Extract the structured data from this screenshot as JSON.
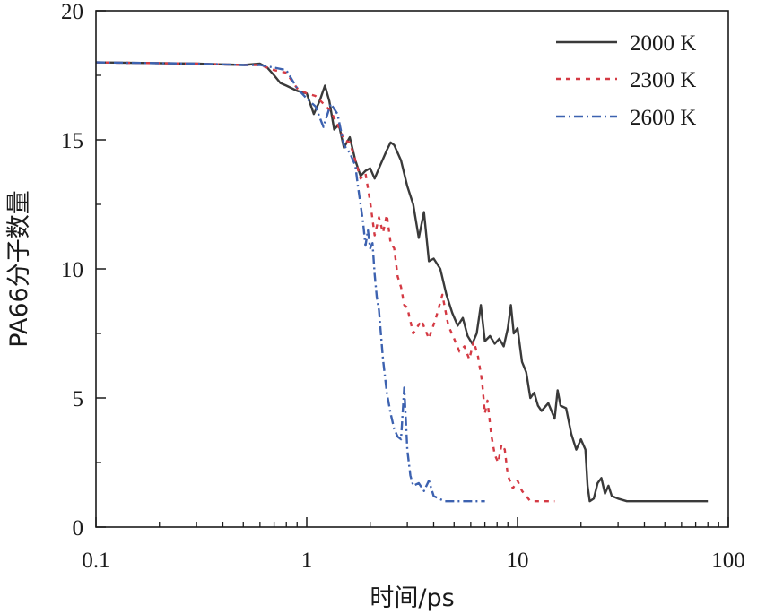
{
  "chart_data": {
    "type": "line",
    "title": "",
    "xlabel": "时间/ps",
    "ylabel": "PA66分子数量",
    "xscale": "log",
    "xlim": [
      0.1,
      100
    ],
    "ylim": [
      0,
      20
    ],
    "grid": false,
    "legend_position": "top-right",
    "x_ticks": [
      0.1,
      1,
      10,
      100
    ],
    "x_tick_labels": [
      "0.1",
      "1",
      "10",
      "100"
    ],
    "y_ticks": [
      0,
      5,
      10,
      15,
      20
    ],
    "y_tick_labels": [
      "0",
      "5",
      "10",
      "15",
      "20"
    ],
    "series": [
      {
        "name": "2000 K",
        "color": "#3a3a3a",
        "dash": "solid",
        "x": [
          0.1,
          0.3,
          0.5,
          0.6,
          0.65,
          0.7,
          0.75,
          0.8,
          0.9,
          1.0,
          1.08,
          1.15,
          1.22,
          1.28,
          1.35,
          1.42,
          1.5,
          1.6,
          1.7,
          1.8,
          1.9,
          2.0,
          2.1,
          2.2,
          2.4,
          2.5,
          2.6,
          2.8,
          3.0,
          3.2,
          3.4,
          3.6,
          3.8,
          4.0,
          4.3,
          4.6,
          4.9,
          5.2,
          5.5,
          5.8,
          6.1,
          6.4,
          6.7,
          7.0,
          7.4,
          7.8,
          8.2,
          8.6,
          9.0,
          9.3,
          9.6,
          10.0,
          10.5,
          11.0,
          11.5,
          12.0,
          12.5,
          13.0,
          14.0,
          15.0,
          15.5,
          16.0,
          17.0,
          18.0,
          19.0,
          20.0,
          21.0,
          21.5,
          22.0,
          23.0,
          24.0,
          25.0,
          26.0,
          27.0,
          28.0,
          30.0,
          33.0,
          36.0,
          40.0,
          50.0,
          60.0,
          70.0,
          80.0
        ],
        "y": [
          18.0,
          17.95,
          17.9,
          17.95,
          17.8,
          17.5,
          17.2,
          17.1,
          16.9,
          16.8,
          16.0,
          16.5,
          17.1,
          16.5,
          15.4,
          15.6,
          14.7,
          15.1,
          14.2,
          13.6,
          13.8,
          13.9,
          13.5,
          13.9,
          14.6,
          14.9,
          14.8,
          14.2,
          13.2,
          12.5,
          11.2,
          12.2,
          10.3,
          10.4,
          10.0,
          9.0,
          8.3,
          7.8,
          8.1,
          7.4,
          7.1,
          7.5,
          8.6,
          7.2,
          7.4,
          7.1,
          7.3,
          7.0,
          7.7,
          8.6,
          7.5,
          7.7,
          6.4,
          6.0,
          5.0,
          5.2,
          4.7,
          4.5,
          4.8,
          4.2,
          5.3,
          4.7,
          4.6,
          3.6,
          3.0,
          3.4,
          3.0,
          1.6,
          1.0,
          1.1,
          1.7,
          1.9,
          1.3,
          1.6,
          1.2,
          1.1,
          1.0,
          1.0,
          1.0,
          1.0,
          1.0,
          1.0,
          1.0
        ]
      },
      {
        "name": "2300 K",
        "color": "#d43a44",
        "dash": "dotted",
        "x": [
          0.1,
          0.3,
          0.5,
          0.6,
          0.7,
          0.8,
          0.9,
          1.0,
          1.1,
          1.2,
          1.3,
          1.4,
          1.5,
          1.6,
          1.7,
          1.8,
          1.9,
          2.0,
          2.1,
          2.2,
          2.3,
          2.4,
          2.5,
          2.6,
          2.7,
          2.8,
          2.9,
          3.0,
          3.2,
          3.5,
          3.8,
          4.1,
          4.4,
          4.7,
          5.0,
          5.3,
          5.6,
          5.9,
          6.2,
          6.5,
          6.8,
          7.0,
          7.2,
          7.5,
          7.8,
          8.1,
          8.4,
          8.7,
          9.0,
          9.5,
          10.0,
          10.5,
          11.0,
          11.5,
          12.0,
          13.0,
          14.0,
          15.0
        ],
        "y": [
          18.0,
          17.95,
          17.9,
          17.9,
          17.7,
          17.6,
          17.0,
          16.8,
          16.7,
          16.4,
          16.1,
          15.6,
          15.0,
          14.9,
          14.2,
          13.5,
          13.7,
          12.6,
          11.3,
          12.0,
          11.4,
          12.1,
          11.0,
          10.8,
          9.7,
          9.3,
          8.6,
          8.5,
          7.5,
          8.0,
          7.3,
          8.1,
          9.0,
          7.8,
          7.3,
          6.8,
          7.0,
          6.5,
          7.2,
          6.6,
          5.6,
          4.4,
          4.9,
          3.6,
          2.8,
          2.5,
          3.2,
          3.0,
          2.0,
          1.5,
          1.8,
          1.4,
          1.2,
          1.0,
          1.0,
          1.0,
          1.0,
          1.0
        ]
      },
      {
        "name": "2600 K",
        "color": "#3d62b0",
        "dash": "dash-dot",
        "x": [
          0.1,
          0.3,
          0.5,
          0.6,
          0.7,
          0.8,
          0.9,
          1.0,
          1.1,
          1.2,
          1.3,
          1.4,
          1.5,
          1.6,
          1.7,
          1.75,
          1.8,
          1.85,
          1.9,
          1.95,
          2.0,
          2.05,
          2.1,
          2.15,
          2.2,
          2.3,
          2.4,
          2.5,
          2.6,
          2.7,
          2.8,
          2.9,
          3.0,
          3.1,
          3.2,
          3.4,
          3.6,
          3.8,
          4.0,
          4.5,
          5.0,
          6.0,
          7.0
        ],
        "y": [
          18.0,
          17.95,
          17.9,
          17.9,
          17.8,
          17.7,
          17.0,
          16.6,
          16.3,
          15.5,
          16.4,
          16.0,
          14.8,
          14.5,
          14.0,
          13.2,
          12.5,
          11.8,
          10.9,
          11.5,
          10.8,
          11.0,
          9.8,
          8.9,
          8.4,
          6.5,
          5.2,
          4.4,
          3.8,
          3.5,
          3.4,
          5.4,
          3.0,
          2.0,
          1.6,
          1.7,
          1.4,
          1.8,
          1.2,
          1.0,
          1.0,
          1.0,
          1.0
        ]
      }
    ]
  }
}
